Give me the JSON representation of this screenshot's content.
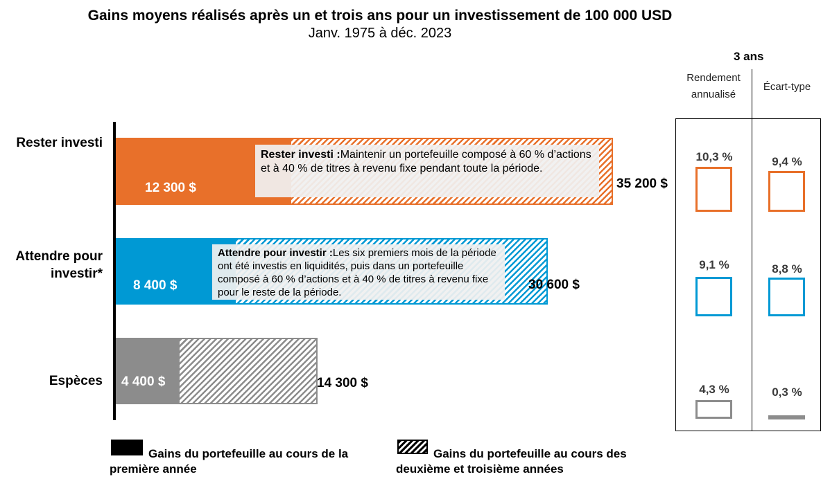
{
  "chart_data": {
    "type": "bar",
    "orientation": "horizontal",
    "stacked": true,
    "title": "Gains moyens réalisés après un et trois ans pour un investissement de 100 000 USD",
    "subtitle": "Janv. 1975 à déc. 2023",
    "categories": [
      "Rester investi",
      "Attendre pour investir*",
      "Espèces"
    ],
    "series": [
      {
        "name": "Gains du portefeuille au cours de la première année",
        "values": [
          12300,
          8400,
          4400
        ]
      },
      {
        "name": "Gains du portefeuille au cours des deuxième et troisième années",
        "values": [
          22900,
          22200,
          9900
        ]
      }
    ],
    "totals": [
      35200,
      30600,
      14300
    ],
    "first_year_labels": [
      "12 300 $",
      "8 400 $",
      "4 400 $"
    ],
    "total_labels": [
      "35 200 $",
      "30 600 $",
      "14 300 $"
    ],
    "colors": [
      "#e8702a",
      "#0099d4",
      "#8c8c8c"
    ],
    "xlim": [
      0,
      35200
    ],
    "notes": [
      {
        "title": "Rester investi :",
        "text": "Maintenir un portefeuille composé à 60 % d’actions et à 40 % de titres à revenu fixe pendant toute la période."
      },
      {
        "title": "Attendre pour investir :",
        "text": "Les six premiers mois de la période ont été investis en liquidités, puis dans un portefeuille composé à 60 % d’actions et à 40 % de titres à revenu fixe pour le reste de la période."
      }
    ],
    "stats": {
      "heading": "3 ans",
      "columns": [
        "Rendement annualisé",
        "Écart-type"
      ],
      "rows": [
        {
          "return": 10.3,
          "return_label": "10,3 %",
          "stdev": 9.4,
          "stdev_label": "9,4 %"
        },
        {
          "return": 9.1,
          "return_label": "9,1 %",
          "stdev": 8.8,
          "stdev_label": "8,8 %"
        },
        {
          "return": 4.3,
          "return_label": "4,3 %",
          "stdev": 0.3,
          "stdev_label": "0,3 %"
        }
      ]
    },
    "legend": [
      "Gains du portefeuille au cours de la première année",
      "Gains du portefeuille au cours des deuxième et troisième années"
    ]
  }
}
